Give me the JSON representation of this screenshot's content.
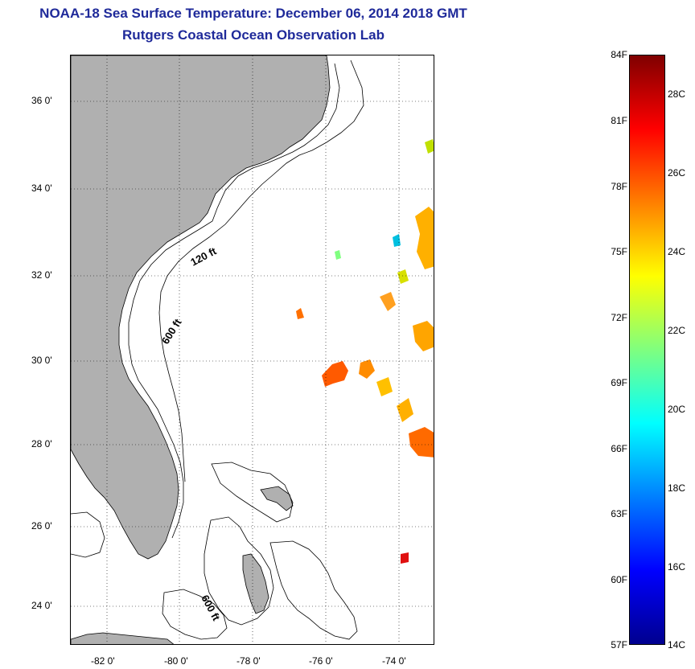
{
  "title": "NOAA-18 Sea Surface Temperature:  December 06, 2014 2018 GMT",
  "subtitle": "Rutgers Coastal Ocean Observation Lab",
  "map": {
    "lat_range": [
      23,
      37.2
    ],
    "lon_range": [
      -83,
      -73
    ],
    "lat_ticks": [
      "36 0'",
      "34 0'",
      "32 0'",
      "30 0'",
      "28 0'",
      "26 0'",
      "24 0'"
    ],
    "lon_ticks": [
      "-82 0'",
      "-80 0'",
      "-78 0'",
      "-76 0'",
      "-74 0'"
    ],
    "land_color": "#b0b0b0",
    "ocean_color": "#ffffff",
    "contour_labels": [
      "120 ft",
      "600 ft",
      "600 ft"
    ],
    "grid": "dotted"
  },
  "colorbar": {
    "fahrenheit_labels": [
      "84F",
      "81F",
      "78F",
      "75F",
      "72F",
      "69F",
      "66F",
      "63F",
      "60F",
      "57F"
    ],
    "celsius_labels": [
      "28C",
      "26C",
      "24C",
      "22C",
      "20C",
      "18C",
      "16C",
      "14C"
    ],
    "min_f": 57,
    "max_f": 84,
    "colors": [
      "#00008f",
      "#0000ff",
      "#007fff",
      "#00ffff",
      "#7fff7f",
      "#ffff00",
      "#ff7f00",
      "#ff0000",
      "#7f0000"
    ]
  }
}
